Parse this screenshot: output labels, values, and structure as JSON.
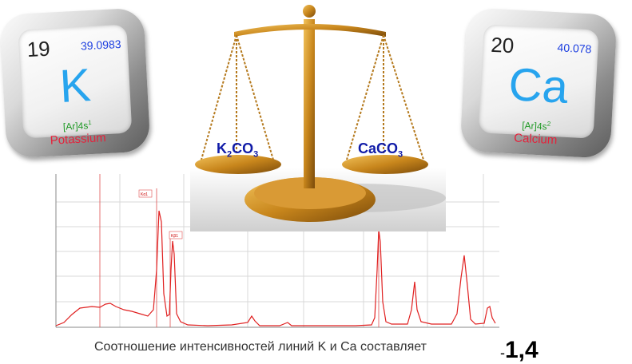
{
  "potassium": {
    "atomic_number": "19",
    "atomic_mass": "39.0983",
    "symbol": "K",
    "config_base": "[Ar]4s",
    "config_sup": "1",
    "name": "Potassium"
  },
  "calcium": {
    "atomic_number": "20",
    "atomic_mass": "40.078",
    "symbol": "Ca",
    "config_base": "[Ar]4s",
    "config_sup": "2",
    "name": "Calcium"
  },
  "scales": {
    "left_pan": {
      "main": "K",
      "sub1": "2",
      "mid": "CO",
      "sub2": "3"
    },
    "right_pan": {
      "main": "CaCO",
      "sub": "3"
    }
  },
  "spectrum": {
    "peak_label_1": "Kα1",
    "peak_label_2": "Kβ1"
  },
  "caption": "Соотношение интенсивностей линий K и Ca составляет",
  "ratio_dash": "-",
  "ratio_value": "1,4",
  "colors": {
    "symbol": "#27a4ee",
    "mass": "#1d3fe0",
    "config": "#1f9a25",
    "name": "#e4223b",
    "spectrum_line": "#e02020",
    "brass": "#c8861c"
  }
}
